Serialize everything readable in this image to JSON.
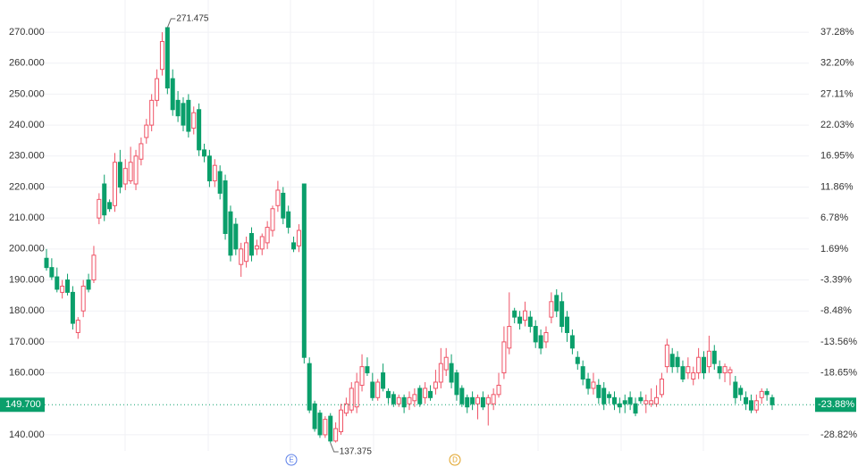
{
  "chart_data": {
    "type": "candlestick",
    "open": [
      197,
      194,
      191,
      186,
      190,
      186,
      173,
      180,
      190,
      190,
      210,
      221,
      215,
      214,
      228,
      221,
      222,
      221,
      229,
      236,
      240,
      248,
      258,
      271.475,
      255,
      248,
      247,
      248,
      239,
      245,
      232,
      230,
      222,
      225,
      222,
      212,
      208,
      195,
      196,
      205,
      200,
      200,
      202,
      206,
      214,
      218,
      212,
      202,
      201,
      221,
      163,
      150,
      147,
      140,
      146,
      138,
      141,
      147,
      148,
      149,
      156,
      162,
      157,
      152,
      160,
      154,
      153,
      150,
      152,
      150,
      151,
      155,
      152,
      154,
      155,
      157,
      161,
      163,
      160,
      155,
      152,
      152,
      150,
      152,
      150,
      150,
      153,
      160,
      168,
      180,
      178,
      177,
      178,
      175,
      172,
      170,
      178,
      185,
      183,
      178,
      172,
      165,
      162,
      158,
      155,
      156,
      155,
      153,
      152,
      150,
      151,
      152,
      150,
      152,
      150,
      150,
      150,
      153,
      162,
      166,
      165,
      162,
      160,
      158,
      160,
      165,
      162,
      167,
      162,
      160,
      160,
      157,
      155,
      152,
      151,
      148,
      152,
      154,
      152
    ],
    "high": [
      200,
      197,
      194,
      190,
      192,
      188,
      178,
      190,
      192,
      201,
      218,
      224,
      216,
      231,
      232,
      229,
      233,
      232,
      236,
      242,
      250,
      258,
      270,
      271.475,
      258,
      251,
      249,
      250,
      246,
      247,
      234,
      232,
      229,
      227,
      224,
      214,
      210,
      202,
      204,
      207,
      203,
      205,
      209,
      214,
      222,
      220,
      214,
      204,
      208,
      221,
      165,
      151,
      148,
      146,
      147,
      144,
      150,
      152,
      157,
      160,
      166,
      165,
      160,
      158,
      163,
      155,
      154,
      153,
      153,
      154,
      155,
      156,
      157,
      156,
      161,
      168,
      168,
      166,
      161,
      156,
      153,
      154,
      153,
      154,
      153,
      155,
      160,
      175,
      186,
      181,
      180,
      183,
      180,
      177,
      174,
      175,
      186,
      187,
      186,
      180,
      174,
      167,
      164,
      160,
      160,
      158,
      157,
      154,
      154,
      152,
      153,
      154,
      152,
      154,
      153,
      155,
      156,
      160,
      171,
      168,
      167,
      164,
      165,
      162,
      168,
      167,
      172,
      169,
      164,
      163,
      162,
      159,
      156,
      154,
      153,
      153,
      155,
      155,
      153
    ],
    "low": [
      193,
      190,
      186,
      184,
      185,
      174,
      171,
      178,
      186,
      189,
      208,
      209,
      212,
      212,
      218,
      219,
      221,
      219,
      227,
      234,
      238,
      246,
      256,
      250,
      243,
      241,
      238,
      236,
      237,
      230,
      228,
      220,
      220,
      216,
      203,
      196,
      198,
      191,
      194,
      196,
      198,
      198,
      200,
      204,
      212,
      208,
      205,
      199,
      199,
      163,
      147,
      141,
      139,
      139,
      137.375,
      137.5,
      140,
      146,
      147,
      147,
      154,
      159,
      151,
      151,
      154,
      150,
      149,
      149,
      147,
      148,
      149,
      149,
      150,
      151,
      153,
      155,
      159,
      155,
      151,
      149,
      147,
      148,
      145,
      148,
      143,
      148,
      152,
      158,
      166,
      176,
      174,
      175,
      173,
      168,
      166,
      168,
      176,
      178,
      173,
      170,
      166,
      161,
      156,
      153,
      153,
      150,
      148,
      150,
      148,
      147,
      147,
      148,
      146,
      150,
      147,
      149,
      149,
      152,
      160,
      160,
      160,
      157,
      158,
      156,
      158,
      158,
      160,
      161,
      158,
      157,
      156,
      150,
      151,
      148,
      147,
      147,
      150,
      151,
      148
    ],
    "close": [
      194,
      191,
      187,
      188,
      186,
      176,
      177,
      188,
      187,
      198,
      216,
      211,
      213,
      228,
      220,
      226,
      228,
      230,
      234,
      240,
      248,
      255,
      267,
      252,
      245,
      243,
      240,
      238,
      244,
      232,
      230,
      222,
      227,
      218,
      205,
      198,
      200,
      200,
      202,
      198,
      201,
      204,
      207,
      213,
      219,
      210,
      207,
      200,
      206,
      165,
      148,
      142,
      140,
      145,
      138,
      142,
      148,
      150,
      155,
      157,
      162,
      160,
      152,
      157,
      155,
      152,
      150,
      152,
      149,
      152,
      153,
      150,
      155,
      152,
      157,
      163,
      165,
      157,
      153,
      150,
      149,
      150,
      152,
      149,
      152,
      153,
      156,
      170,
      175,
      178,
      176,
      180,
      175,
      170,
      168,
      173,
      183,
      180,
      175,
      173,
      168,
      163,
      158,
      155,
      157,
      152,
      150,
      152,
      150,
      149,
      150,
      150,
      147,
      151,
      151,
      151,
      152,
      158,
      169,
      162,
      162,
      158,
      162,
      160,
      165,
      160,
      167,
      163,
      160,
      162,
      161,
      152,
      153,
      150,
      148,
      151,
      154,
      153,
      149.7
    ],
    "up_color": "#ef5366",
    "down_color": "#0a9f6b",
    "ylim": [
      129.6,
      280.4
    ],
    "yticks": [
      {
        "value": 140,
        "label": "140.000"
      },
      {
        "value": 160,
        "label": "160.000"
      },
      {
        "value": 170,
        "label": "170.000"
      },
      {
        "value": 180,
        "label": "180.000"
      },
      {
        "value": 190,
        "label": "190.000"
      },
      {
        "value": 200,
        "label": "200.000"
      },
      {
        "value": 210,
        "label": "210.000"
      },
      {
        "value": 220,
        "label": "220.000"
      },
      {
        "value": 230,
        "label": "230.000"
      },
      {
        "value": 240,
        "label": "240.000"
      },
      {
        "value": 250,
        "label": "250.000"
      },
      {
        "value": 260,
        "label": "260.000"
      },
      {
        "value": 270,
        "label": "270.000"
      }
    ],
    "y2lim": [
      -34.1,
      42.58
    ],
    "y2ticks": [
      {
        "value": -28.82,
        "label": "-28.82%"
      },
      {
        "value": -18.65,
        "label": "-18.65%"
      },
      {
        "value": -13.56,
        "label": "-13.56%"
      },
      {
        "value": -8.48,
        "label": "-8.48%"
      },
      {
        "value": -3.39,
        "label": "-3.39%"
      },
      {
        "value": 1.69,
        "label": "1.69%"
      },
      {
        "value": 6.78,
        "label": "6.78%"
      },
      {
        "value": 11.86,
        "label": "11.86%"
      },
      {
        "value": 16.95,
        "label": "16.95%"
      },
      {
        "value": 22.03,
        "label": "22.03%"
      },
      {
        "value": 27.11,
        "label": "27.11%"
      },
      {
        "value": 32.2,
        "label": "32.20%"
      },
      {
        "value": 37.28,
        "label": "37.28%"
      }
    ],
    "grid": true,
    "last_price": {
      "value": 149.7,
      "label": "149.700"
    },
    "last_change": {
      "value": -23.88,
      "label": "-23.88%"
    },
    "high_label": 271.475,
    "low_label": 137.375,
    "events": [
      {
        "label": "E",
        "color": "#5b7fe8"
      },
      {
        "label": "D",
        "color": "#e0a020"
      }
    ]
  }
}
